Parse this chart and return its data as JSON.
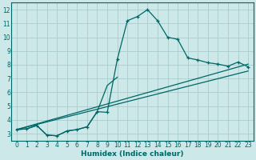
{
  "xlabel": "Humidex (Indice chaleur)",
  "bg_color": "#cce8e8",
  "grid_color": "#aacccc",
  "line_color": "#006666",
  "xlim": [
    -0.5,
    23.5
  ],
  "ylim": [
    2.5,
    12.5
  ],
  "xticks": [
    0,
    1,
    2,
    3,
    4,
    5,
    6,
    7,
    8,
    9,
    10,
    11,
    12,
    13,
    14,
    15,
    16,
    17,
    18,
    19,
    20,
    21,
    22,
    23
  ],
  "yticks": [
    3,
    4,
    5,
    6,
    7,
    8,
    9,
    10,
    11,
    12
  ],
  "main_line": {
    "x": [
      0,
      1,
      2,
      3,
      4,
      5,
      6,
      7,
      8,
      9,
      10,
      11,
      12,
      13,
      14,
      15,
      16,
      17,
      18,
      19,
      20,
      21,
      22,
      23
    ],
    "y": [
      3.3,
      3.35,
      3.6,
      2.9,
      2.85,
      3.2,
      3.3,
      3.5,
      4.6,
      4.55,
      8.4,
      11.2,
      11.5,
      12.0,
      11.2,
      10.0,
      9.85,
      8.5,
      8.35,
      8.15,
      8.05,
      7.9,
      8.2,
      7.85
    ]
  },
  "line2": {
    "x": [
      0,
      1,
      2,
      3,
      4,
      5,
      6,
      7,
      8,
      9,
      10
    ],
    "y": [
      3.3,
      3.35,
      3.6,
      2.9,
      2.85,
      3.2,
      3.3,
      3.5,
      4.6,
      6.5,
      7.1
    ]
  },
  "straight1": {
    "x": [
      0,
      23
    ],
    "y": [
      3.3,
      8.05
    ]
  },
  "straight2": {
    "x": [
      0,
      23
    ],
    "y": [
      3.3,
      7.55
    ]
  }
}
